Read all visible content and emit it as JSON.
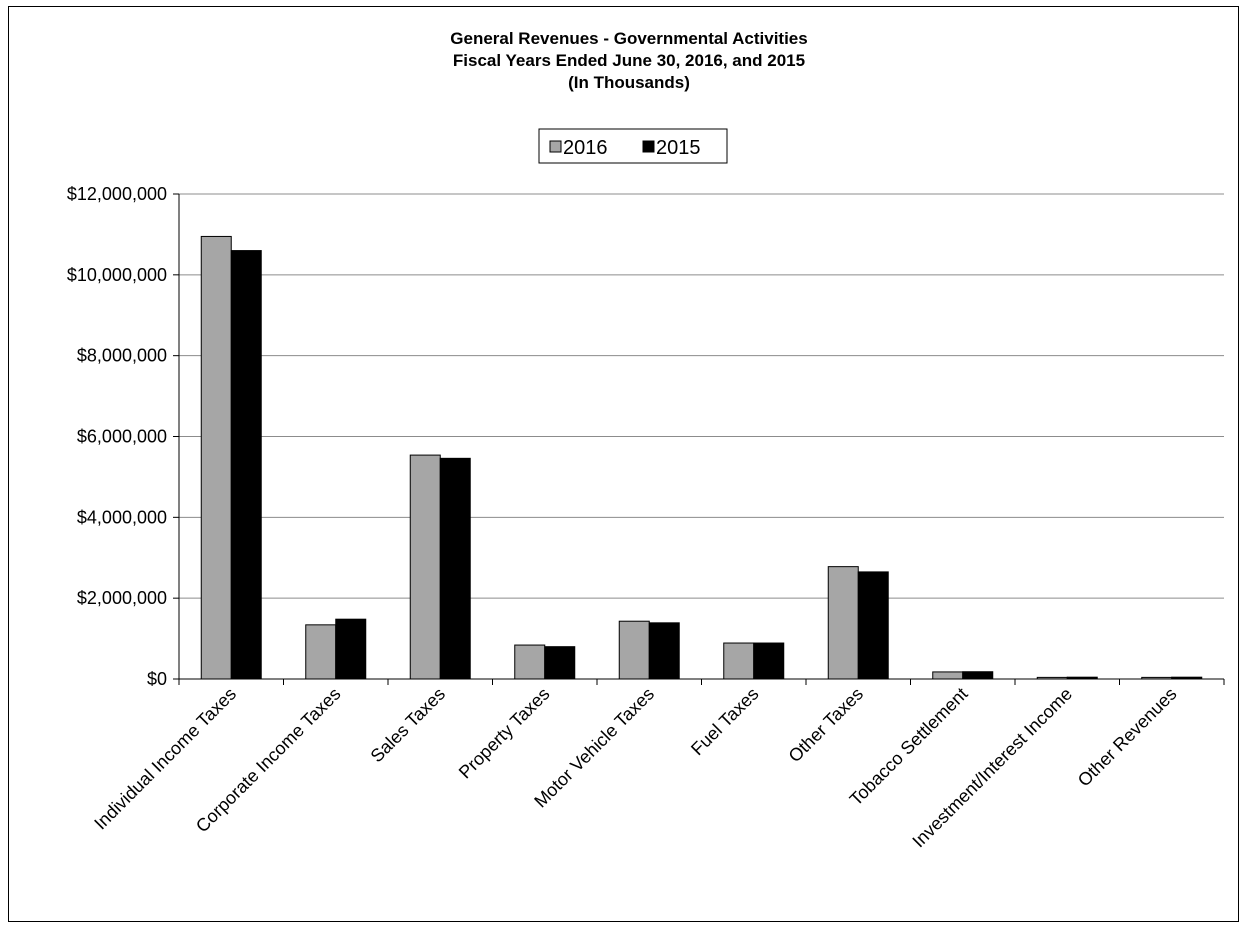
{
  "chart_data": {
    "type": "bar",
    "title": [
      "General Revenues - Governmental Activities",
      "Fiscal Years Ended June 30, 2016, and 2015",
      "(In Thousands)"
    ],
    "categories": [
      "Individual Income Taxes",
      "Corporate Income Taxes",
      "Sales Taxes",
      "Property Taxes",
      "Motor Vehicle Taxes",
      "Fuel Taxes",
      "Other Taxes",
      "Tobacco Settlement",
      "Investment/Interest Income",
      "Other Revenues"
    ],
    "series": [
      {
        "name": "2016",
        "color": "#a6a6a6",
        "values": [
          10950000,
          1340000,
          5540000,
          840000,
          1430000,
          890000,
          2780000,
          175000,
          40000,
          40000
        ]
      },
      {
        "name": "2015",
        "color": "#000000",
        "values": [
          10600000,
          1480000,
          5460000,
          800000,
          1390000,
          890000,
          2650000,
          180000,
          45000,
          45000
        ]
      }
    ],
    "ylim": [
      0,
      12000000
    ],
    "yticks": [
      0,
      2000000,
      4000000,
      6000000,
      8000000,
      10000000,
      12000000
    ],
    "ytick_labels": [
      "$0",
      "$2,000,000",
      "$4,000,000",
      "$6,000,000",
      "$8,000,000",
      "$10,000,000",
      "$12,000,000"
    ],
    "grid": true,
    "legend_position": "top-center",
    "xlabel": "",
    "ylabel": ""
  }
}
